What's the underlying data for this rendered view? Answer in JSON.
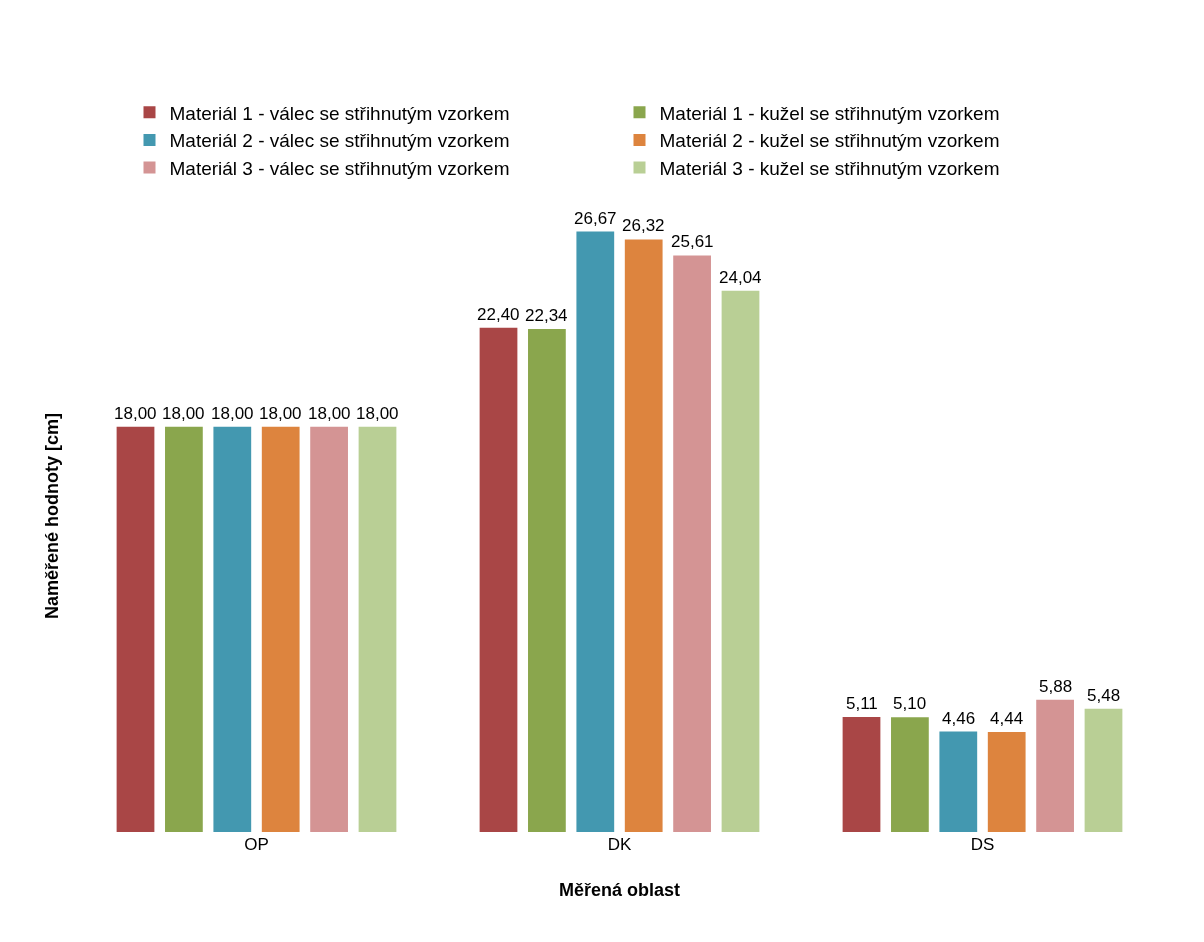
{
  "chart_data": {
    "type": "bar",
    "xlabel": "Měřená oblast",
    "ylabel": "Naměřené hodnoty [cm]",
    "categories": [
      "OP",
      "DK",
      "DS"
    ],
    "series": [
      {
        "name": "Materiál 1 - válec se střihnutým vzorkem",
        "color": "#a94646",
        "values": [
          18.0,
          22.4,
          5.11
        ],
        "value_labels": [
          "18,00",
          "22,40",
          "5,11"
        ]
      },
      {
        "name": "Materiál 1 - kužel se střihnutým vzorkem",
        "color": "#8aa64d",
        "values": [
          18.0,
          22.34,
          5.1
        ],
        "value_labels": [
          "18,00",
          "22,34",
          "5,10"
        ]
      },
      {
        "name": "Materiál 2 - válec se střihnutým vzorkem",
        "color": "#4398b0",
        "values": [
          18.0,
          26.67,
          4.46
        ],
        "value_labels": [
          "18,00",
          "26,67",
          "4,46"
        ]
      },
      {
        "name": "Materiál 2 - kužel se střihnutým vzorkem",
        "color": "#dd843e",
        "values": [
          18.0,
          26.32,
          4.44
        ],
        "value_labels": [
          "18,00",
          "26,32",
          "4,44"
        ]
      },
      {
        "name": "Materiál 3 - válec se střihnutým vzorkem",
        "color": "#d49494",
        "values": [
          18.0,
          25.61,
          5.88
        ],
        "value_labels": [
          "18,00",
          "25,61",
          "5,88"
        ]
      },
      {
        "name": "Materiál 3 - kužel se střihnutým vzorkem",
        "color": "#b9cf95",
        "values": [
          18.0,
          24.04,
          5.48
        ],
        "value_labels": [
          "18,00",
          "24,04",
          "5,48"
        ]
      }
    ],
    "grid": false,
    "legend": "top"
  }
}
